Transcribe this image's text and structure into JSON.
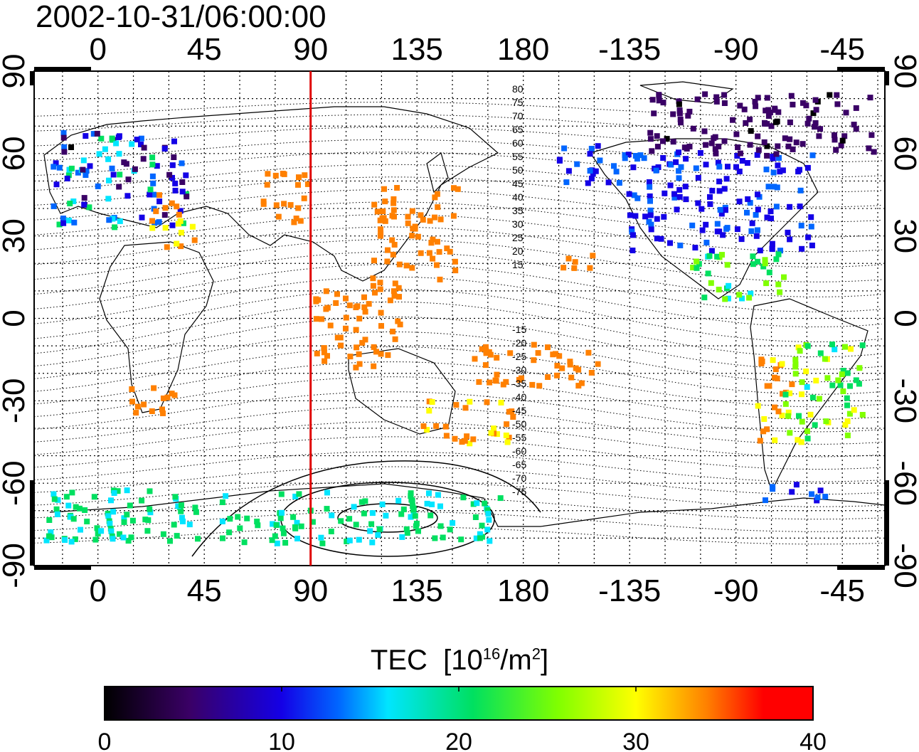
{
  "title": "2002-10-31/06:00:00",
  "map": {
    "top_lon_ticks": [
      "0",
      "45",
      "90",
      "135",
      "180",
      "-135",
      "-90",
      "-45"
    ],
    "bottom_lon_ticks": [
      "0",
      "45",
      "90",
      "135",
      "180",
      "-135",
      "-90",
      "-45"
    ],
    "left_lat_ticks": [
      "90",
      "60",
      "30",
      "0",
      "-30",
      "-60",
      "-90"
    ],
    "right_lat_ticks": [
      "90",
      "60",
      "30",
      "0",
      "-30",
      "-60",
      "-90"
    ],
    "marker_longitude": 90,
    "marker_color": "#e00000",
    "contour_labels_north": [
      "80",
      "75",
      "70",
      "65",
      "60",
      "55",
      "50",
      "45",
      "40",
      "35",
      "30",
      "25",
      "20",
      "15"
    ],
    "contour_labels_south": [
      "-15",
      "-20",
      "-25",
      "-30",
      "-35",
      "-40",
      "-45",
      "-50",
      "-55",
      "-60",
      "-65",
      "-70",
      "-75"
    ]
  },
  "colorbar": {
    "label": "TEC",
    "unit_base": "10",
    "unit_exp": "16",
    "unit_mid": "/m",
    "unit_exp2": "2",
    "ticks": [
      "0",
      "10",
      "20",
      "30",
      "40"
    ],
    "range": [
      0,
      40
    ],
    "colors": [
      "#000000",
      "#3a0066",
      "#1400e6",
      "#0066ff",
      "#00e5ff",
      "#00e060",
      "#80ff00",
      "#ffff00",
      "#ff8000",
      "#ff0000"
    ]
  }
}
